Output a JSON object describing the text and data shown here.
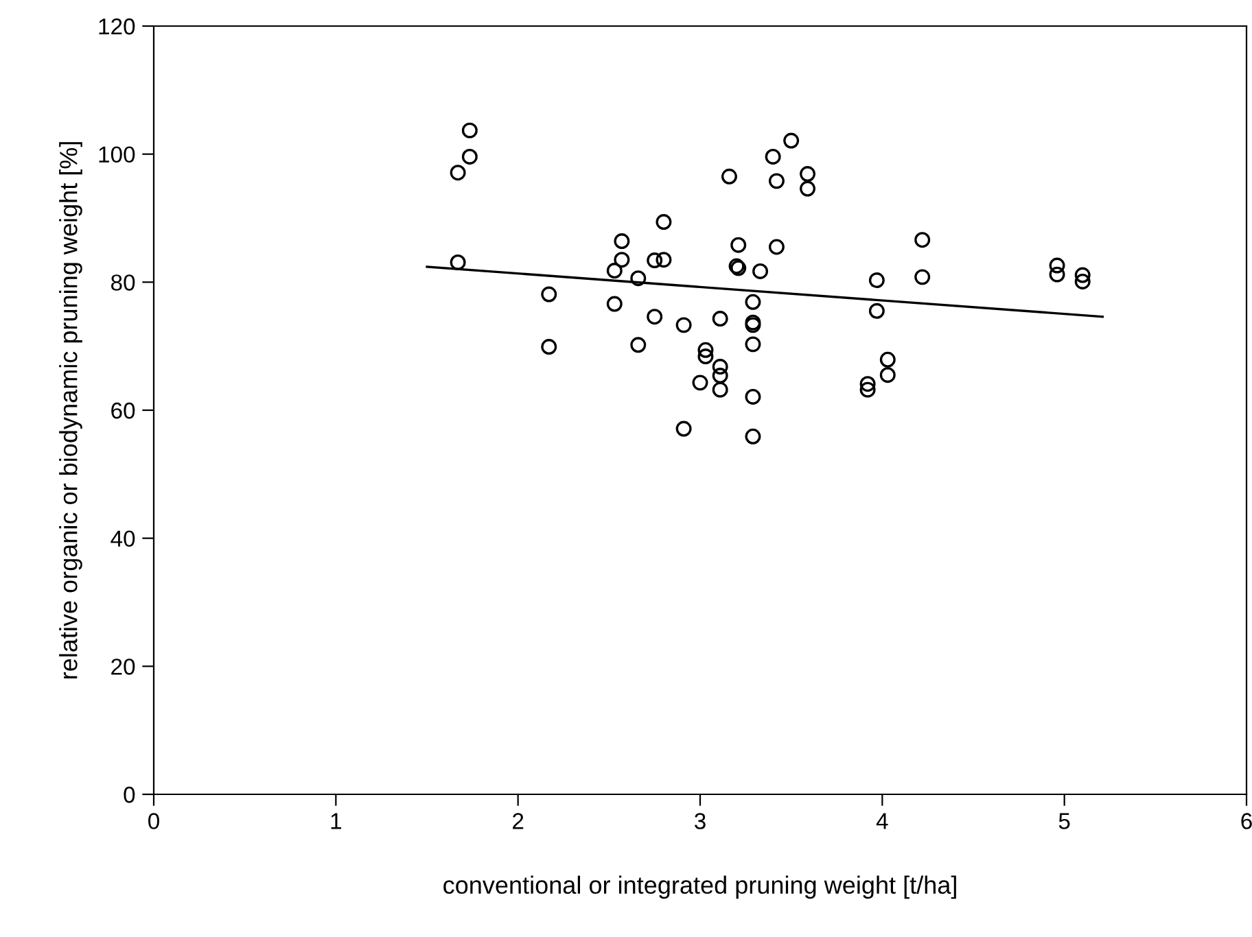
{
  "chart_data": {
    "type": "scatter",
    "xlabel": "conventional or integrated pruning weight [t/ha]",
    "ylabel": "relative organic or biodynamic pruning weight [%]",
    "xlim": [
      0,
      6
    ],
    "ylim": [
      0,
      120
    ],
    "xticks": [
      0,
      1,
      2,
      3,
      4,
      5,
      6
    ],
    "yticks": [
      0,
      20,
      40,
      60,
      80,
      100,
      120
    ],
    "grid": false,
    "legend": false,
    "series": [
      {
        "color": "#000000",
        "marker": "circle",
        "x": [
          1.735,
          1.735,
          1.67,
          1.67,
          2.17,
          2.17,
          2.57,
          2.57,
          2.53,
          2.66,
          2.53,
          2.66,
          2.8,
          2.75,
          2.8,
          2.75,
          2.91,
          2.91,
          3.03,
          3.03,
          3.0,
          3.5,
          3.4,
          3.16,
          3.42,
          3.59,
          3.59,
          3.21,
          3.42,
          3.2,
          3.21,
          3.33,
          3.29,
          3.29,
          3.29,
          3.29,
          3.11,
          3.11,
          3.11,
          3.11,
          3.29,
          3.29,
          4.22,
          4.22,
          3.97,
          3.97,
          4.03,
          4.03,
          3.92,
          3.92,
          4.96,
          4.96,
          5.1,
          5.1
        ],
        "values": [
          103.7,
          99.6,
          97.1,
          83.1,
          78.1,
          69.9,
          86.4,
          83.5,
          81.8,
          80.6,
          76.6,
          70.2,
          89.4,
          83.4,
          83.5,
          74.6,
          73.3,
          57.1,
          69.4,
          68.4,
          64.3,
          102.1,
          99.6,
          96.5,
          95.8,
          96.9,
          94.6,
          85.8,
          85.5,
          82.5,
          82.2,
          81.7,
          76.9,
          73.7,
          73.3,
          70.3,
          74.3,
          66.8,
          65.4,
          63.2,
          62.1,
          55.9,
          86.6,
          80.8,
          80.3,
          75.5,
          67.9,
          65.5,
          64.1,
          63.2,
          82.6,
          81.2,
          81.1,
          80.1
        ]
      },
      {
        "type": "line",
        "color": "#000000",
        "marker": "none",
        "line_style": "solid",
        "x": [
          1.5,
          5.21
        ],
        "values": [
          82.4,
          74.6
        ]
      }
    ]
  }
}
